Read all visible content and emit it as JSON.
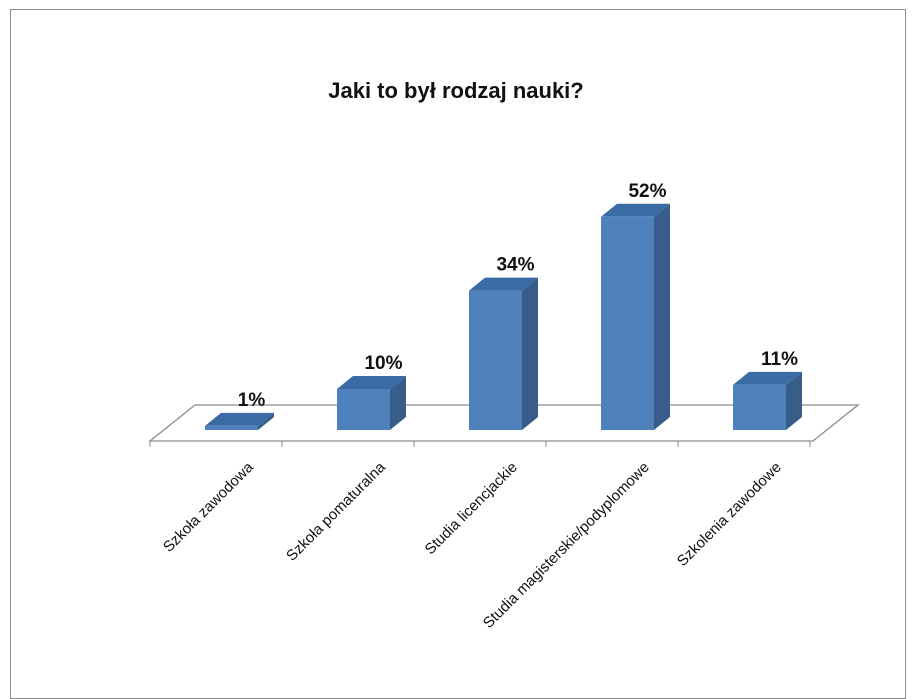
{
  "chart_data": {
    "type": "bar",
    "title": "Jaki to był rodzaj nauki?",
    "categories": [
      "Szkoła zawodowa",
      "Szkoła pomaturalna",
      "Studia licencjackie",
      "Studia magisterskie/podyplomowe",
      "Szkolenia zawodowe"
    ],
    "values": [
      1,
      10,
      34,
      52,
      11
    ],
    "value_labels": [
      "1%",
      "10%",
      "34%",
      "52%",
      "11%"
    ],
    "unit": "%",
    "style": "3d-column",
    "grid": false,
    "legend": "none",
    "colors": {
      "front": "#4f81bd",
      "side": "#385d8a",
      "top": "#3b6ba5",
      "floor_edge": "#8c8c8c"
    }
  }
}
